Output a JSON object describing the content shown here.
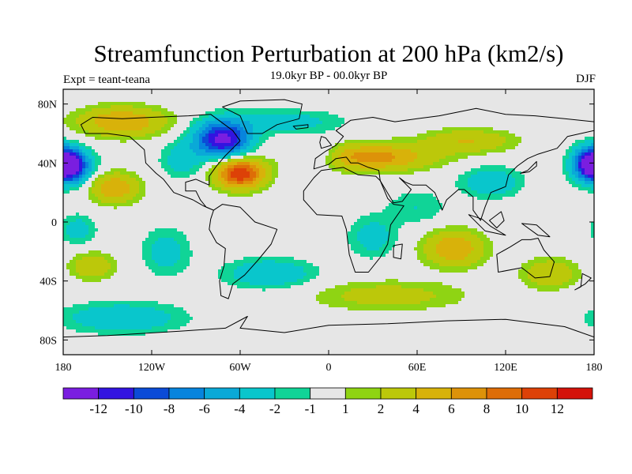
{
  "title": "Streamfunction Perturbation at 200 hPa (km2/s)",
  "subtitle": "19.0kyr BP - 00.0kyr BP",
  "left_label": "Expt = teant-teana",
  "right_label": "DJF",
  "map": {
    "lon_ticks": [
      "180",
      "120W",
      "60W",
      "0",
      "60E",
      "120E",
      "180"
    ],
    "lat_ticks": [
      "80N",
      "40N",
      "0",
      "40S",
      "80S"
    ]
  },
  "colorbar": {
    "colors": [
      "#7a1ee0",
      "#3214e0",
      "#0b4bd7",
      "#0784dd",
      "#0aa9d7",
      "#09c6cc",
      "#10d497",
      "#e6e6e6",
      "#8fd413",
      "#bcc80a",
      "#d8b20a",
      "#dd9209",
      "#de6d07",
      "#dd4107",
      "#d4130a"
    ],
    "labels": [
      "-12",
      "-10",
      "-8",
      "-6",
      "-4",
      "-2",
      "-1",
      "1",
      "2",
      "4",
      "6",
      "8",
      "10",
      "12"
    ]
  },
  "field": {
    "features": [
      {
        "type": "blob",
        "lon": -72,
        "lat": 56,
        "a": -13,
        "rlon": 18,
        "rlat": 12
      },
      {
        "type": "blob",
        "lon": -60,
        "lat": 33,
        "a": 12,
        "rlon": 16,
        "rlat": 10
      },
      {
        "type": "blob",
        "lon": -176,
        "lat": 38,
        "a": -12,
        "rlon": 14,
        "rlat": 11
      },
      {
        "type": "blob",
        "lon": 178,
        "lat": 40,
        "a": -9,
        "rlon": 12,
        "rlat": 11
      },
      {
        "type": "blob",
        "lon": -145,
        "lat": 23,
        "a": 6,
        "rlon": 16,
        "rlat": 10
      },
      {
        "type": "blob",
        "lon": -140,
        "lat": 68,
        "a": 6,
        "rlon": 30,
        "rlat": 10
      },
      {
        "type": "blob",
        "lon": -100,
        "lat": 42,
        "a": -3,
        "rlon": 14,
        "rlat": 12
      },
      {
        "type": "blob",
        "lon": 30,
        "lat": 44,
        "a": 7,
        "rlon": 40,
        "rlat": 9
      },
      {
        "type": "blob",
        "lon": 95,
        "lat": 55,
        "a": 4,
        "rlon": 30,
        "rlat": 8
      },
      {
        "type": "blob",
        "lon": 110,
        "lat": 27,
        "a": -4,
        "rlon": 20,
        "rlat": 10
      },
      {
        "type": "blob",
        "lon": -5,
        "lat": 45,
        "a": -3,
        "rlon": 12,
        "rlat": 10
      },
      {
        "type": "blob",
        "lon": 85,
        "lat": -18,
        "a": 6,
        "rlon": 20,
        "rlat": 12
      },
      {
        "type": "blob",
        "lon": 40,
        "lat": -50,
        "a": 3,
        "rlon": 50,
        "rlat": 10
      },
      {
        "type": "blob",
        "lon": -160,
        "lat": -30,
        "a": 4,
        "rlon": 14,
        "rlat": 9
      },
      {
        "type": "blob",
        "lon": -140,
        "lat": -65,
        "a": -4,
        "rlon": 40,
        "rlat": 10
      },
      {
        "type": "blob",
        "lon": -40,
        "lat": -35,
        "a": -4,
        "rlon": 30,
        "rlat": 10
      },
      {
        "type": "blob",
        "lon": 30,
        "lat": -10,
        "a": -3,
        "rlon": 16,
        "rlat": 14
      },
      {
        "type": "blob",
        "lon": -110,
        "lat": -20,
        "a": -3,
        "rlon": 16,
        "rlat": 16
      },
      {
        "type": "blob",
        "lon": 150,
        "lat": -35,
        "a": 4,
        "rlon": 18,
        "rlat": 10
      },
      {
        "type": "blob",
        "lon": -30,
        "lat": 68,
        "a": -3,
        "rlon": 40,
        "rlat": 8
      },
      {
        "type": "blob",
        "lon": 60,
        "lat": 10,
        "a": -2,
        "rlon": 20,
        "rlat": 12
      },
      {
        "type": "blob",
        "lon": -170,
        "lat": -5,
        "a": -3,
        "rlon": 12,
        "rlat": 10
      }
    ]
  },
  "continents": [
    {
      "name": "north-america",
      "points": [
        [
          -168,
          66
        ],
        [
          -160,
          71
        ],
        [
          -140,
          70
        ],
        [
          -120,
          71
        ],
        [
          -95,
          72
        ],
        [
          -80,
          73
        ],
        [
          -65,
          62
        ],
        [
          -60,
          55
        ],
        [
          -70,
          45
        ],
        [
          -76,
          38
        ],
        [
          -81,
          31
        ],
        [
          -81,
          25
        ],
        [
          -90,
          29
        ],
        [
          -97,
          27
        ],
        [
          -97,
          21
        ],
        [
          -90,
          21
        ],
        [
          -87,
          15
        ],
        [
          -83,
          10
        ],
        [
          -78,
          8
        ],
        [
          -85,
          11
        ],
        [
          -92,
          15
        ],
        [
          -105,
          20
        ],
        [
          -112,
          29
        ],
        [
          -117,
          33
        ],
        [
          -124,
          40
        ],
        [
          -125,
          49
        ],
        [
          -135,
          58
        ],
        [
          -150,
          60
        ],
        [
          -165,
          60
        ]
      ]
    },
    {
      "name": "greenland",
      "points": [
        [
          -55,
          60
        ],
        [
          -45,
          60
        ],
        [
          -35,
          66
        ],
        [
          -20,
          70
        ],
        [
          -18,
          80
        ],
        [
          -30,
          83
        ],
        [
          -60,
          82
        ],
        [
          -72,
          78
        ],
        [
          -60,
          72
        ]
      ]
    },
    {
      "name": "south-america",
      "points": [
        [
          -78,
          8
        ],
        [
          -72,
          12
        ],
        [
          -60,
          10
        ],
        [
          -50,
          0
        ],
        [
          -35,
          -5
        ],
        [
          -39,
          -15
        ],
        [
          -48,
          -26
        ],
        [
          -57,
          -36
        ],
        [
          -65,
          -42
        ],
        [
          -68,
          -52
        ],
        [
          -73,
          -50
        ],
        [
          -74,
          -40
        ],
        [
          -71,
          -30
        ],
        [
          -70,
          -18
        ],
        [
          -76,
          -14
        ],
        [
          -81,
          -5
        ],
        [
          -80,
          2
        ]
      ]
    },
    {
      "name": "eurasia",
      "points": [
        [
          -10,
          36
        ],
        [
          -9,
          43
        ],
        [
          -2,
          48
        ],
        [
          5,
          52
        ],
        [
          10,
          58
        ],
        [
          5,
          62
        ],
        [
          15,
          69
        ],
        [
          30,
          71
        ],
        [
          45,
          68
        ],
        [
          60,
          70
        ],
        [
          75,
          72
        ],
        [
          100,
          77
        ],
        [
          120,
          73
        ],
        [
          140,
          72
        ],
        [
          160,
          70
        ],
        [
          180,
          68
        ],
        [
          180,
          62
        ],
        [
          162,
          58
        ],
        [
          155,
          50
        ],
        [
          142,
          46
        ],
        [
          135,
          43
        ],
        [
          128,
          38
        ],
        [
          122,
          32
        ],
        [
          120,
          24
        ],
        [
          110,
          20
        ],
        [
          106,
          10
        ],
        [
          103,
          1
        ],
        [
          98,
          8
        ],
        [
          98,
          17
        ],
        [
          92,
          22
        ],
        [
          88,
          22
        ],
        [
          80,
          15
        ],
        [
          77,
          8
        ],
        [
          72,
          20
        ],
        [
          66,
          25
        ],
        [
          57,
          25
        ],
        [
          52,
          27
        ],
        [
          48,
          30
        ],
        [
          56,
          22
        ],
        [
          50,
          14
        ],
        [
          44,
          13
        ],
        [
          35,
          28
        ],
        [
          34,
          35
        ],
        [
          27,
          37
        ],
        [
          20,
          40
        ],
        [
          15,
          40
        ],
        [
          12,
          44
        ],
        [
          5,
          43
        ],
        [
          0,
          39
        ]
      ]
    },
    {
      "name": "africa",
      "points": [
        [
          -17,
          21
        ],
        [
          -10,
          30
        ],
        [
          -5,
          35
        ],
        [
          10,
          37
        ],
        [
          20,
          32
        ],
        [
          32,
          31
        ],
        [
          35,
          28
        ],
        [
          40,
          16
        ],
        [
          44,
          12
        ],
        [
          51,
          11
        ],
        [
          42,
          -2
        ],
        [
          40,
          -15
        ],
        [
          35,
          -24
        ],
        [
          27,
          -34
        ],
        [
          18,
          -34
        ],
        [
          14,
          -22
        ],
        [
          12,
          -5
        ],
        [
          9,
          4
        ],
        [
          -8,
          5
        ],
        [
          -17,
          15
        ]
      ]
    },
    {
      "name": "australia",
      "points": [
        [
          114,
          -22
        ],
        [
          123,
          -17
        ],
        [
          131,
          -12
        ],
        [
          137,
          -12
        ],
        [
          142,
          -11
        ],
        [
          146,
          -19
        ],
        [
          153,
          -27
        ],
        [
          150,
          -37
        ],
        [
          140,
          -38
        ],
        [
          131,
          -31
        ],
        [
          115,
          -34
        ]
      ]
    },
    {
      "name": "antarctica",
      "points": [
        [
          -180,
          -78
        ],
        [
          -150,
          -77
        ],
        [
          -100,
          -74
        ],
        [
          -70,
          -72
        ],
        [
          -55,
          -64
        ],
        [
          -60,
          -72
        ],
        [
          -30,
          -75
        ],
        [
          0,
          -70
        ],
        [
          40,
          -69
        ],
        [
          80,
          -67
        ],
        [
          120,
          -66
        ],
        [
          160,
          -71
        ],
        [
          180,
          -78
        ],
        [
          180,
          -90
        ],
        [
          -180,
          -90
        ]
      ]
    },
    {
      "name": "madagascar",
      "points": [
        [
          44,
          -16
        ],
        [
          50,
          -15
        ],
        [
          49,
          -25
        ],
        [
          44,
          -24
        ]
      ]
    },
    {
      "name": "japan",
      "points": [
        [
          130,
          33
        ],
        [
          135,
          35
        ],
        [
          141,
          41
        ],
        [
          141,
          38
        ],
        [
          136,
          34
        ]
      ]
    },
    {
      "name": "uk",
      "points": [
        [
          -5,
          50
        ],
        [
          2,
          52
        ],
        [
          -2,
          57
        ],
        [
          -5,
          58
        ],
        [
          -6,
          54
        ]
      ]
    },
    {
      "name": "new-zealand",
      "points": [
        [
          172,
          -35
        ],
        [
          178,
          -38
        ],
        [
          174,
          -42
        ],
        [
          167,
          -46
        ],
        [
          171,
          -44
        ]
      ]
    },
    {
      "name": "indonesia",
      "points": [
        [
          95,
          5
        ],
        [
          106,
          -6
        ],
        [
          115,
          -8
        ],
        [
          120,
          -9
        ],
        [
          110,
          -3
        ],
        [
          104,
          2
        ]
      ]
    },
    {
      "name": "borneo",
      "points": [
        [
          109,
          1
        ],
        [
          117,
          7
        ],
        [
          119,
          1
        ],
        [
          114,
          -4
        ]
      ]
    },
    {
      "name": "new-guinea",
      "points": [
        [
          131,
          -1
        ],
        [
          141,
          -2
        ],
        [
          150,
          -10
        ],
        [
          142,
          -9
        ]
      ]
    },
    {
      "name": "iceland",
      "points": [
        [
          -24,
          65
        ],
        [
          -14,
          66
        ],
        [
          -14,
          64
        ],
        [
          -22,
          63
        ]
      ]
    }
  ]
}
